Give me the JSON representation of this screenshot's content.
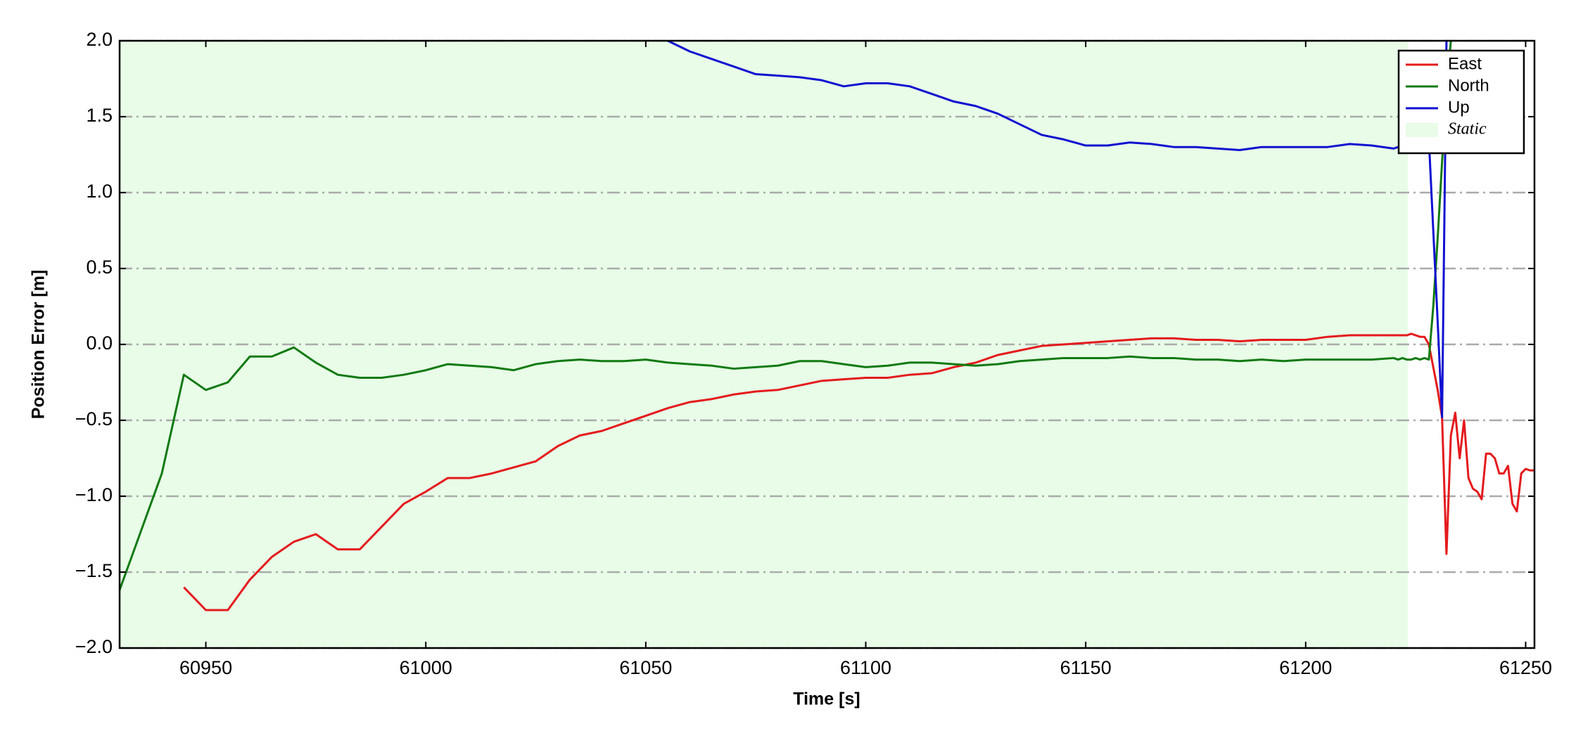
{
  "chart_data": {
    "type": "line",
    "xlabel": "Time [s]",
    "ylabel": "Position Error [m]",
    "x": [
      60930,
      60935,
      60940,
      60945,
      60950,
      60955,
      60960,
      60965,
      60970,
      60975,
      60980,
      60985,
      60990,
      60995,
      61000,
      61005,
      61010,
      61015,
      61020,
      61025,
      61030,
      61035,
      61040,
      61045,
      61050,
      61055,
      61060,
      61065,
      61070,
      61075,
      61080,
      61085,
      61090,
      61095,
      61100,
      61105,
      61110,
      61115,
      61120,
      61125,
      61130,
      61135,
      61140,
      61145,
      61150,
      61155,
      61160,
      61165,
      61170,
      61175,
      61180,
      61185,
      61190,
      61195,
      61200,
      61205,
      61210,
      61215,
      61220,
      61221,
      61222,
      61223,
      61224,
      61225,
      61226,
      61227,
      61228,
      61229,
      61230,
      61231,
      61232,
      61233,
      61234,
      61235,
      61236,
      61237,
      61238,
      61239,
      61240,
      61241,
      61242,
      61243,
      61244,
      61245,
      61246,
      61247,
      61248,
      61249,
      61250,
      61251,
      61252
    ],
    "series": [
      {
        "name": "East",
        "color": "#e41a1c",
        "values": [
          null,
          null,
          null,
          -1.6,
          -1.75,
          -1.75,
          -1.55,
          -1.4,
          -1.3,
          -1.25,
          -1.35,
          -1.35,
          -1.2,
          -1.05,
          -0.97,
          -0.88,
          -0.88,
          -0.85,
          -0.81,
          -0.77,
          -0.67,
          -0.6,
          -0.57,
          -0.52,
          -0.47,
          -0.42,
          -0.38,
          -0.36,
          -0.33,
          -0.31,
          -0.3,
          -0.27,
          -0.24,
          -0.23,
          -0.22,
          -0.22,
          -0.2,
          -0.19,
          -0.15,
          -0.12,
          -0.07,
          -0.04,
          -0.01,
          0,
          0.01,
          0.02,
          0.03,
          0.04,
          0.04,
          0.03,
          0.03,
          0.02,
          0.03,
          0.03,
          0.03,
          0.05,
          0.06,
          0.06,
          0.06,
          0.06,
          0.06,
          0.06,
          0.07,
          0.06,
          0.05,
          0.05,
          0,
          -0.15,
          -0.3,
          -0.48,
          -1.38,
          -0.6,
          -0.45,
          -0.75,
          -0.5,
          -0.88,
          -0.95,
          -0.97,
          -1.02,
          -0.72,
          -0.72,
          -0.75,
          -0.85,
          -0.85,
          -0.8,
          -1.05,
          -1.1,
          -0.85,
          -0.82,
          -0.83,
          -0.83
        ]
      },
      {
        "name": "North",
        "color": "#117a11",
        "values": [
          -1.65,
          -1.25,
          -0.85,
          -0.2,
          -0.3,
          -0.25,
          -0.08,
          -0.08,
          -0.02,
          -0.12,
          -0.2,
          -0.22,
          -0.22,
          -0.2,
          -0.17,
          -0.13,
          -0.14,
          -0.15,
          -0.17,
          -0.13,
          -0.11,
          -0.1,
          -0.11,
          -0.11,
          -0.1,
          -0.12,
          -0.13,
          -0.14,
          -0.16,
          -0.15,
          -0.14,
          -0.11,
          -0.11,
          -0.13,
          -0.15,
          -0.14,
          -0.12,
          -0.12,
          -0.13,
          -0.14,
          -0.13,
          -0.11,
          -0.1,
          -0.09,
          -0.09,
          -0.09,
          -0.08,
          -0.09,
          -0.09,
          -0.1,
          -0.1,
          -0.11,
          -0.1,
          -0.11,
          -0.1,
          -0.1,
          -0.1,
          -0.1,
          -0.09,
          -0.1,
          -0.09,
          -0.1,
          -0.1,
          -0.09,
          -0.1,
          -0.09,
          -0.1,
          0.25,
          0.7,
          1.2,
          1.65,
          2.0,
          null,
          null,
          null,
          null,
          null,
          null,
          null,
          null,
          null,
          null,
          null,
          null,
          null,
          null,
          null,
          null,
          null,
          null,
          null
        ]
      },
      {
        "name": "Up",
        "color": "#1010d0",
        "values": [
          null,
          null,
          null,
          null,
          null,
          null,
          null,
          null,
          null,
          null,
          null,
          null,
          null,
          null,
          null,
          null,
          null,
          null,
          null,
          null,
          null,
          null,
          null,
          null,
          null,
          2.0,
          1.93,
          1.88,
          1.83,
          1.78,
          1.77,
          1.76,
          1.74,
          1.7,
          1.72,
          1.72,
          1.7,
          1.65,
          1.6,
          1.57,
          1.52,
          1.45,
          1.38,
          1.35,
          1.31,
          1.31,
          1.33,
          1.32,
          1.3,
          1.3,
          1.29,
          1.28,
          1.3,
          1.3,
          1.3,
          1.3,
          1.32,
          1.31,
          1.29,
          1.3,
          1.28,
          1.3,
          1.3,
          1.32,
          1.32,
          1.33,
          1.35,
          0.75,
          0.15,
          -0.48,
          2.0,
          null,
          null,
          null,
          null,
          null,
          null,
          null,
          null,
          null,
          null,
          null,
          null,
          null,
          null,
          null,
          null,
          null,
          null,
          null,
          null
        ]
      }
    ],
    "shade": {
      "label": "Static",
      "x": [
        60930,
        61223.2
      ],
      "color": "#e8fce8"
    },
    "xlim": [
      60930.4,
      61252
    ],
    "ylim": [
      -2,
      2
    ],
    "xticks": [
      60950,
      61000,
      61050,
      61100,
      61150,
      61200,
      61250
    ],
    "yticks": [
      {
        "value": -2,
        "label": "−2.0"
      },
      {
        "value": -1.5,
        "label": "−1.5"
      },
      {
        "value": -1,
        "label": "−1.0"
      },
      {
        "value": -0.5,
        "label": "−0.5"
      },
      {
        "value": 0,
        "label": "0.0"
      },
      {
        "value": 0.5,
        "label": "0.5"
      },
      {
        "value": 1,
        "label": "1.0"
      },
      {
        "value": 1.5,
        "label": "1.5"
      },
      {
        "value": 2,
        "label": "2.0"
      }
    ],
    "grid": "y",
    "legend": "upper right"
  }
}
